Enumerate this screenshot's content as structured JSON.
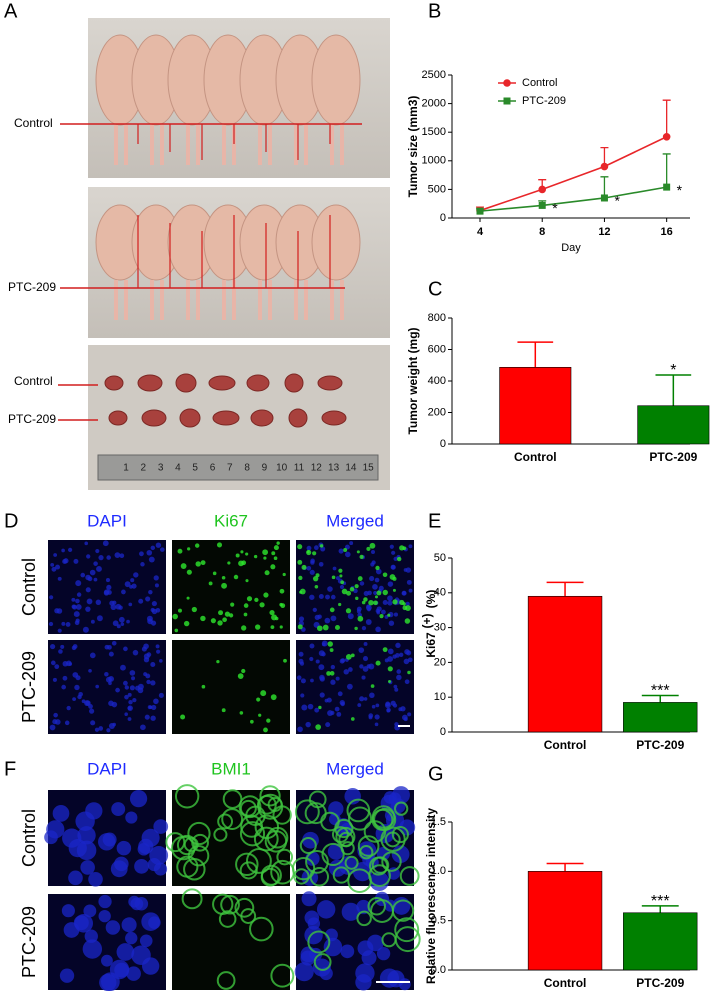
{
  "panel_letters": [
    "A",
    "B",
    "C",
    "D",
    "E",
    "F",
    "G"
  ],
  "panel_a": {
    "labels": [
      "Control",
      "PTC-209",
      "Control",
      "PTC-209"
    ],
    "ruler": [
      1,
      2,
      3,
      4,
      5,
      6,
      7,
      8,
      9,
      10,
      11,
      12,
      13,
      14,
      15
    ]
  },
  "microscopy": [
    {
      "columns": [
        "DAPI",
        "Ki67",
        "Merged"
      ],
      "rows": [
        "Control",
        "PTC-209"
      ]
    },
    {
      "columns": [
        "DAPI",
        "BMI1",
        "Merged"
      ],
      "rows": [
        "Control",
        "PTC-209"
      ]
    }
  ],
  "chart_data": [
    {
      "type": "line",
      "ylabel": "Tumor size (mm3)",
      "xlabel": "Day",
      "x": [
        4,
        8,
        12,
        16
      ],
      "xlim": [
        2.2,
        17.5
      ],
      "xticks": [
        4,
        8,
        12,
        16
      ],
      "ylim": [
        0,
        2500
      ],
      "yticks": [
        0,
        500,
        1000,
        1500,
        2000,
        2500
      ],
      "legend": "upper left",
      "series": [
        {
          "name": "Control",
          "color": "#e8262a",
          "marker": "circle",
          "values": [
            130,
            500,
            900,
            1420
          ],
          "errors": [
            60,
            170,
            330,
            640
          ]
        },
        {
          "name": "PTC-209",
          "color": "#2a8a2a",
          "marker": "square",
          "values": [
            120,
            220,
            350,
            540
          ],
          "errors": [
            40,
            80,
            370,
            580
          ],
          "significance": [
            null,
            "*",
            "*",
            "*"
          ]
        }
      ]
    },
    {
      "type": "bar",
      "ylabel": "Tumor weight (mg)",
      "categories": [
        "Control",
        "PTC-209"
      ],
      "values": [
        487,
        243
      ],
      "errors": [
        160,
        195
      ],
      "colors": [
        "#ff0000",
        "#008000"
      ],
      "significance": [
        null,
        "*"
      ],
      "ylim": [
        0,
        800
      ],
      "yticks": [
        0,
        200,
        400,
        600,
        800
      ]
    },
    {
      "type": "bar",
      "ylabel": "Ki67",
      "ylabel_sup": "(+)",
      "ylabel_unit": "(%)",
      "categories": [
        "Control",
        "PTC-209"
      ],
      "values": [
        39,
        8.5
      ],
      "errors": [
        4,
        2
      ],
      "colors": [
        "#ff0000",
        "#008000"
      ],
      "significance": [
        null,
        "***"
      ],
      "ylim": [
        0,
        50
      ],
      "yticks": [
        0,
        10,
        20,
        30,
        40,
        50
      ]
    },
    {
      "type": "bar",
      "ylabel": "Relative fluorescence intensity",
      "categories": [
        "Control",
        "PTC-209"
      ],
      "values": [
        1.0,
        0.58
      ],
      "errors": [
        0.08,
        0.07
      ],
      "colors": [
        "#ff0000",
        "#008000"
      ],
      "significance": [
        null,
        "***"
      ],
      "ylim": [
        0,
        1.5
      ],
      "yticks": [
        {
          "value": 0,
          "label": "0.0"
        },
        {
          "value": 0.5,
          "label": "0.5"
        },
        {
          "value": 1,
          "label": "1.0"
        },
        {
          "value": 1.5,
          "label": "1.5"
        }
      ]
    }
  ]
}
